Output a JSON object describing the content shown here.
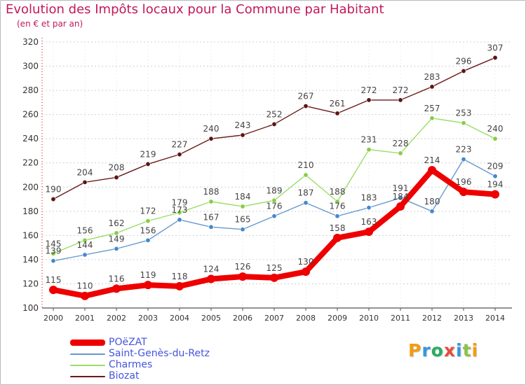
{
  "header": {
    "title": "Evolution des Impôts locaux pour la Commune par Habitant",
    "subtitle": "(en € et par an)"
  },
  "logo": {
    "text": "Proxiti",
    "colors": [
      "#f39c12",
      "#3498db",
      "#27ae60",
      "#e74c3c",
      "#3498db",
      "#8bc34a",
      "#f39c12"
    ]
  },
  "chart_data": {
    "type": "line",
    "title": "Evolution des Impôts locaux pour la Commune par Habitant",
    "subtitle": "(en € et par an)",
    "xlabel": "",
    "ylabel": "",
    "x": [
      "2000",
      "2001",
      "2002",
      "2003",
      "2004",
      "2005",
      "2006",
      "2007",
      "2008",
      "2009",
      "2010",
      "2011",
      "2012",
      "2013",
      "2014"
    ],
    "y_ticks": [
      100,
      120,
      140,
      160,
      180,
      200,
      220,
      240,
      260,
      280,
      300,
      320
    ],
    "ylim": [
      100,
      320
    ],
    "grid": "horizontal dashed",
    "legend_position": "bottom-left",
    "series": [
      {
        "name": "Biozat",
        "color": "#6b1a1a",
        "marker_color": "#5a1515",
        "values": [
          190,
          204,
          208,
          219,
          227,
          240,
          243,
          252,
          267,
          261,
          272,
          272,
          283,
          296,
          307
        ],
        "labels": [
          "190",
          "204",
          "208",
          "219",
          "227",
          "240",
          "243",
          "252",
          "267",
          "261",
          "272",
          "272",
          "283",
          "296",
          "307"
        ]
      },
      {
        "name": "Charmes",
        "color": "#99dd66",
        "marker_color": "#88cc44",
        "values": [
          145,
          156,
          162,
          172,
          179,
          188,
          184,
          189,
          210,
          188,
          231,
          228,
          257,
          253,
          240
        ],
        "labels": [
          "145",
          "156",
          "162",
          "172",
          "179",
          "188",
          "184",
          "189",
          "210",
          "188",
          "231",
          "228",
          "257",
          "253",
          "240"
        ]
      },
      {
        "name": "Saint-Genès-du-Retz",
        "color": "#6699cc",
        "marker_color": "#4488cc",
        "values": [
          139,
          144,
          149,
          156,
          173,
          167,
          165,
          176,
          187,
          176,
          183,
          191,
          180,
          223,
          209
        ],
        "labels": [
          "139",
          "144",
          "149",
          "156",
          "173",
          "167",
          "165",
          "176",
          "187",
          "176",
          "183",
          "191",
          "180",
          "223",
          "209"
        ]
      },
      {
        "name": "POëZAT",
        "color": "#ee0000",
        "marker_color": "#ee0000",
        "values": [
          115,
          110,
          116,
          119,
          118,
          124,
          126,
          125,
          130,
          158,
          163,
          184,
          214,
          196,
          194
        ],
        "labels": [
          "115",
          "110",
          "116",
          "119",
          "118",
          "124",
          "126",
          "125",
          "130",
          "158",
          "163",
          "184",
          "214",
          "196",
          "194"
        ]
      }
    ]
  },
  "legend": [
    {
      "label": "POëZAT",
      "color": "#ee0000",
      "text_color": "#4455dd",
      "thick": true
    },
    {
      "label": "Saint-Genès-du-Retz",
      "color": "#6699cc",
      "text_color": "#4455dd",
      "thick": false
    },
    {
      "label": "Charmes",
      "color": "#99dd66",
      "text_color": "#4455dd",
      "thick": false
    },
    {
      "label": "Biozat",
      "color": "#6b1a1a",
      "text_color": "#4455dd",
      "thick": false
    }
  ]
}
